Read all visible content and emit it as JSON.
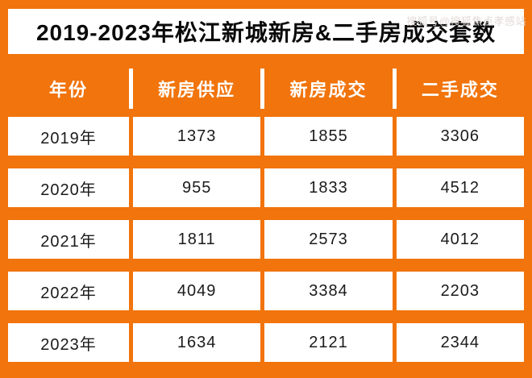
{
  "watermark": "搜狐号@搜狐焦点孝感站",
  "title": "2019-2023年松江新城新房&二手房成交套数",
  "colors": {
    "accent": "#f1740c",
    "cell_bg": "#ffffff",
    "header_text": "#ffffff",
    "title_text": "#0a0a0a"
  },
  "table": {
    "headers": [
      "年份",
      "新房供应",
      "新房成交",
      "二手成交"
    ],
    "rows": [
      [
        "2019年",
        "1373",
        "1855",
        "3306"
      ],
      [
        "2020年",
        "955",
        "1833",
        "4512"
      ],
      [
        "2021年",
        "1811",
        "2573",
        "4012"
      ],
      [
        "2022年",
        "4049",
        "3384",
        "2203"
      ],
      [
        "2023年",
        "1634",
        "2121",
        "2344"
      ]
    ]
  },
  "chart_data": {
    "type": "table",
    "title": "2019-2023年松江新城新房&二手房成交套数",
    "columns": [
      "年份",
      "新房供应",
      "新房成交",
      "二手成交"
    ],
    "categories": [
      "2019年",
      "2020年",
      "2021年",
      "2022年",
      "2023年"
    ],
    "series": [
      {
        "name": "新房供应",
        "values": [
          1373,
          955,
          1811,
          4049,
          1634
        ]
      },
      {
        "name": "新房成交",
        "values": [
          1855,
          1833,
          2573,
          3384,
          2121
        ]
      },
      {
        "name": "二手成交",
        "values": [
          3306,
          4512,
          4012,
          2203,
          2344
        ]
      }
    ]
  }
}
